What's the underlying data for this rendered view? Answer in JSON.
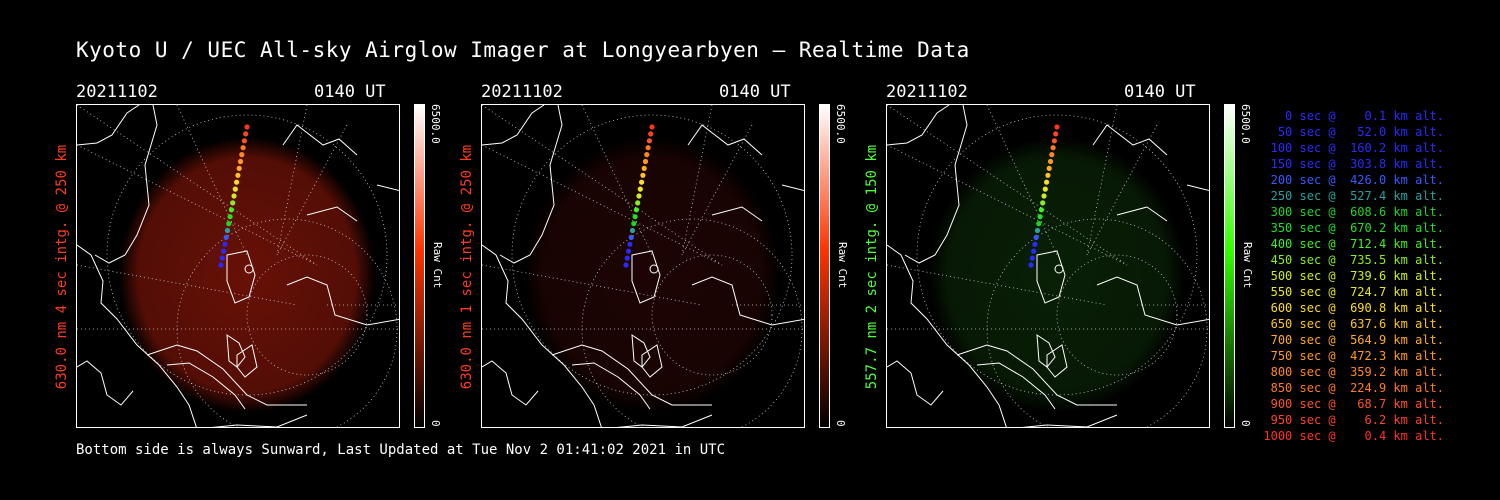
{
  "title": "Kyoto U / UEC All-sky Airglow Imager at Longyearbyen — Realtime Data",
  "footer": "Bottom side is always Sunward, Last Updated at Tue Nov  2 01:41:02 2021 in UTC",
  "panels": [
    {
      "date": "20211102",
      "time": "0140 UT",
      "ylabel": "630.0 nm 4 sec intg. @ 250 km",
      "label_color": "#ff3b1f",
      "cbar_max": "6500.0",
      "cbar_min": "0",
      "cbar_unit": "Raw Cnt",
      "cbar_color": "#ff3300",
      "glow_color": "#7a1408",
      "glow_opacity": 0.85
    },
    {
      "date": "20211102",
      "time": "0140 UT",
      "ylabel": "630.0 nm 1 sec intg. @ 250 km",
      "label_color": "#ff3b1f",
      "cbar_max": "6500.0",
      "cbar_min": "0",
      "cbar_unit": "Raw Cnt",
      "cbar_color": "#ff3300",
      "glow_color": "#2a0603",
      "glow_opacity": 0.7
    },
    {
      "date": "20211102",
      "time": "0140 UT",
      "ylabel": "557.7 nm 2 sec intg. @ 150 km",
      "label_color": "#4cff3c",
      "cbar_max": "6500.0",
      "cbar_min": "0",
      "cbar_unit": "Raw Cnt",
      "cbar_color": "#33ff00",
      "glow_color": "#0c2a08",
      "glow_opacity": 0.75
    }
  ],
  "legend": [
    {
      "label": "   0 sec @    0.1 km alt.",
      "color": "#2a2aff"
    },
    {
      "label": "  50 sec @   52.0 km alt.",
      "color": "#2a2aff"
    },
    {
      "label": " 100 sec @  160.2 km alt.",
      "color": "#2a2aff"
    },
    {
      "label": " 150 sec @  303.8 km alt.",
      "color": "#2a2aff"
    },
    {
      "label": " 200 sec @  426.0 km alt.",
      "color": "#3a5aff"
    },
    {
      "label": " 250 sec @  527.4 km alt.",
      "color": "#2aa0a0"
    },
    {
      "label": " 300 sec @  608.6 km alt.",
      "color": "#22d422"
    },
    {
      "label": " 350 sec @  670.2 km alt.",
      "color": "#22e022"
    },
    {
      "label": " 400 sec @  712.4 km alt.",
      "color": "#44ee22"
    },
    {
      "label": " 450 sec @  735.5 km alt.",
      "color": "#88ee22"
    },
    {
      "label": " 500 sec @  739.6 km alt.",
      "color": "#ccee22"
    },
    {
      "label": " 550 sec @  724.7 km alt.",
      "color": "#e8e822"
    },
    {
      "label": " 600 sec @  690.8 km alt.",
      "color": "#ffdd22"
    },
    {
      "label": " 650 sec @  637.6 km alt.",
      "color": "#ffc422"
    },
    {
      "label": " 700 sec @  564.9 km alt.",
      "color": "#ffaa22"
    },
    {
      "label": " 750 sec @  472.3 km alt.",
      "color": "#ff9922"
    },
    {
      "label": " 800 sec @  359.2 km alt.",
      "color": "#ff8822"
    },
    {
      "label": " 850 sec @  224.9 km alt.",
      "color": "#ff7a22"
    },
    {
      "label": " 900 sec @   68.7 km alt.",
      "color": "#ff5522"
    },
    {
      "label": " 950 sec @    6.2 km alt.",
      "color": "#ff4422"
    },
    {
      "label": "1000 sec @    0.4 km alt.",
      "color": "#ff3322"
    }
  ]
}
